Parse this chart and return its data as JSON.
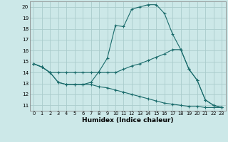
{
  "xlabel": "Humidex (Indice chaleur)",
  "xlim": [
    -0.5,
    23.5
  ],
  "ylim": [
    10.5,
    20.5
  ],
  "yticks": [
    11,
    12,
    13,
    14,
    15,
    16,
    17,
    18,
    19,
    20
  ],
  "xticks": [
    0,
    1,
    2,
    3,
    4,
    5,
    6,
    7,
    8,
    9,
    10,
    11,
    12,
    13,
    14,
    15,
    16,
    17,
    18,
    19,
    20,
    21,
    22,
    23
  ],
  "background_color": "#cce8e8",
  "grid_color": "#aacccc",
  "line_color": "#1a6b6b",
  "line1_y": [
    14.8,
    14.5,
    14.0,
    13.1,
    12.9,
    12.9,
    12.9,
    13.1,
    14.1,
    15.3,
    18.3,
    18.2,
    19.8,
    20.0,
    20.2,
    20.2,
    19.4,
    17.5,
    16.1,
    14.3,
    13.3,
    11.5,
    11.0,
    10.8
  ],
  "line2_y": [
    14.8,
    14.5,
    14.0,
    14.0,
    14.0,
    14.0,
    14.0,
    14.0,
    14.0,
    14.0,
    14.0,
    14.3,
    14.6,
    14.8,
    15.1,
    15.4,
    15.7,
    16.1,
    16.1,
    14.3,
    13.3,
    11.5,
    11.0,
    10.8
  ],
  "line3_y": [
    14.8,
    14.5,
    14.0,
    13.1,
    12.9,
    12.9,
    12.9,
    12.9,
    12.7,
    12.6,
    12.4,
    12.2,
    12.0,
    11.8,
    11.6,
    11.4,
    11.2,
    11.1,
    11.0,
    10.9,
    10.9,
    10.8,
    10.8,
    10.8
  ]
}
